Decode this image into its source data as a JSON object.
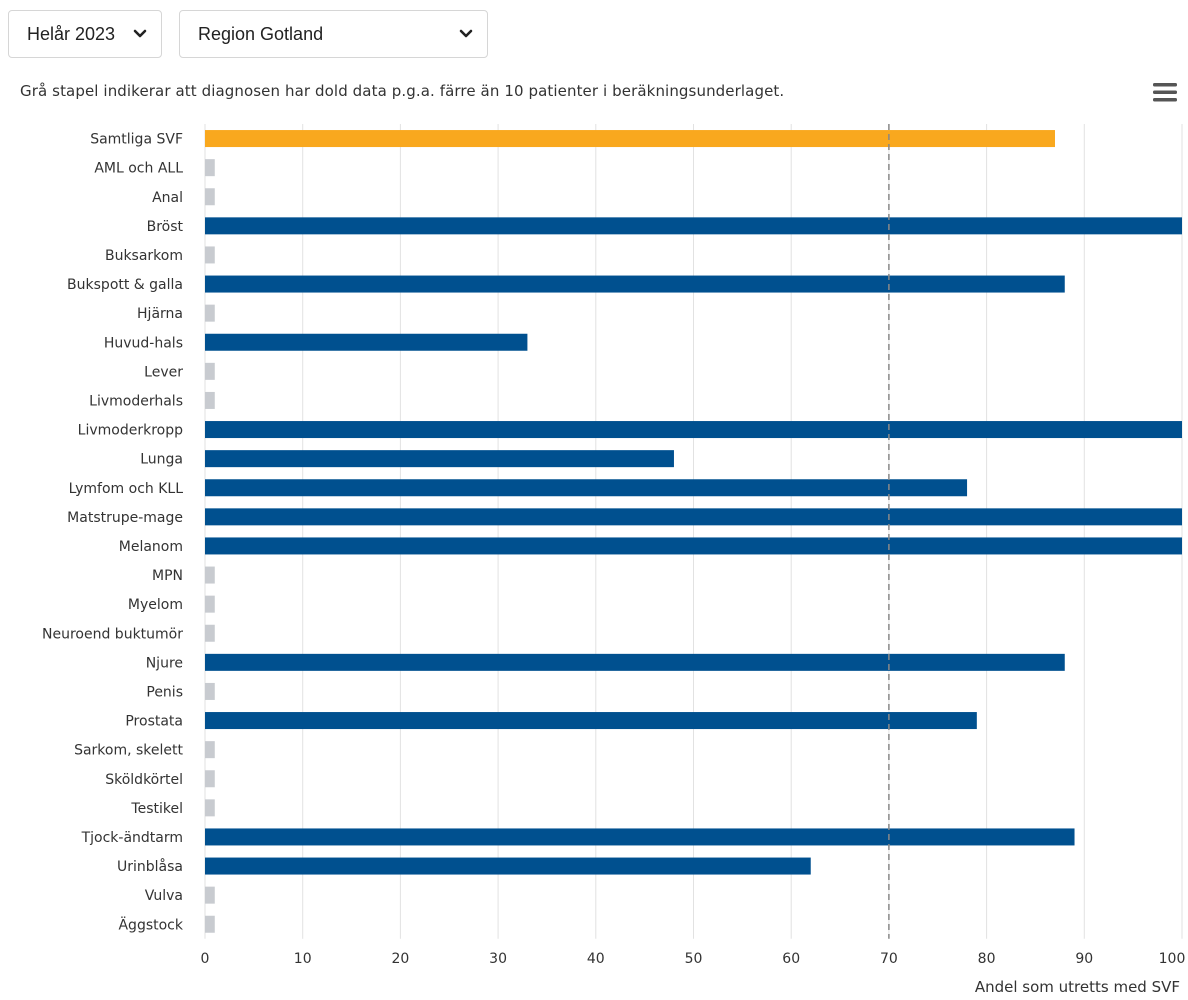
{
  "controls": {
    "period_select": {
      "value": "Helår 2023",
      "icon": "chevron-down-icon"
    },
    "region_select": {
      "value": "Region Gotland",
      "icon": "chevron-down-icon"
    }
  },
  "note": "Grå stapel indikerar att diagnosen har dold data p.g.a. färre än 10 patienter i beräkningsunderlaget.",
  "menu": {
    "icon": "hamburger-menu-icon"
  },
  "colors": {
    "total": "#f9a81e",
    "regular": "#00508f",
    "hidden": "#c8cbd0",
    "grid": "#e2e2e2",
    "target_line": "#888888"
  },
  "chart_data": {
    "type": "bar",
    "orientation": "horizontal",
    "xlabel": "Andel som utretts med SVF",
    "xlim": [
      0,
      100
    ],
    "xticks": [
      0,
      10,
      20,
      30,
      40,
      50,
      60,
      70,
      80,
      90,
      100
    ],
    "grid": true,
    "target_line": 70,
    "categories": [
      "Samtliga SVF",
      "AML och ALL",
      "Anal",
      "Bröst",
      "Buksarkom",
      "Bukspott & galla",
      "Hjärna",
      "Huvud-hals",
      "Lever",
      "Livmoderhals",
      "Livmoderkropp",
      "Lunga",
      "Lymfom och KLL",
      "Matstrupe-mage",
      "Melanom",
      "MPN",
      "Myelom",
      "Neuroend buktumör",
      "Njure",
      "Penis",
      "Prostata",
      "Sarkom, skelett",
      "Sköldkörtel",
      "Testikel",
      "Tjock-ändtarm",
      "Urinblåsa",
      "Vulva",
      "Äggstock"
    ],
    "values": [
      87,
      1,
      1,
      100,
      1,
      88,
      1,
      33,
      1,
      1,
      100,
      48,
      78,
      100,
      100,
      1,
      1,
      1,
      88,
      1,
      79,
      1,
      1,
      1,
      89,
      62,
      1,
      1
    ],
    "status": [
      "total",
      "hidden",
      "hidden",
      "regular",
      "hidden",
      "regular",
      "hidden",
      "regular",
      "hidden",
      "hidden",
      "regular",
      "regular",
      "regular",
      "regular",
      "regular",
      "hidden",
      "hidden",
      "hidden",
      "regular",
      "hidden",
      "regular",
      "hidden",
      "hidden",
      "hidden",
      "regular",
      "regular",
      "hidden",
      "hidden"
    ]
  }
}
